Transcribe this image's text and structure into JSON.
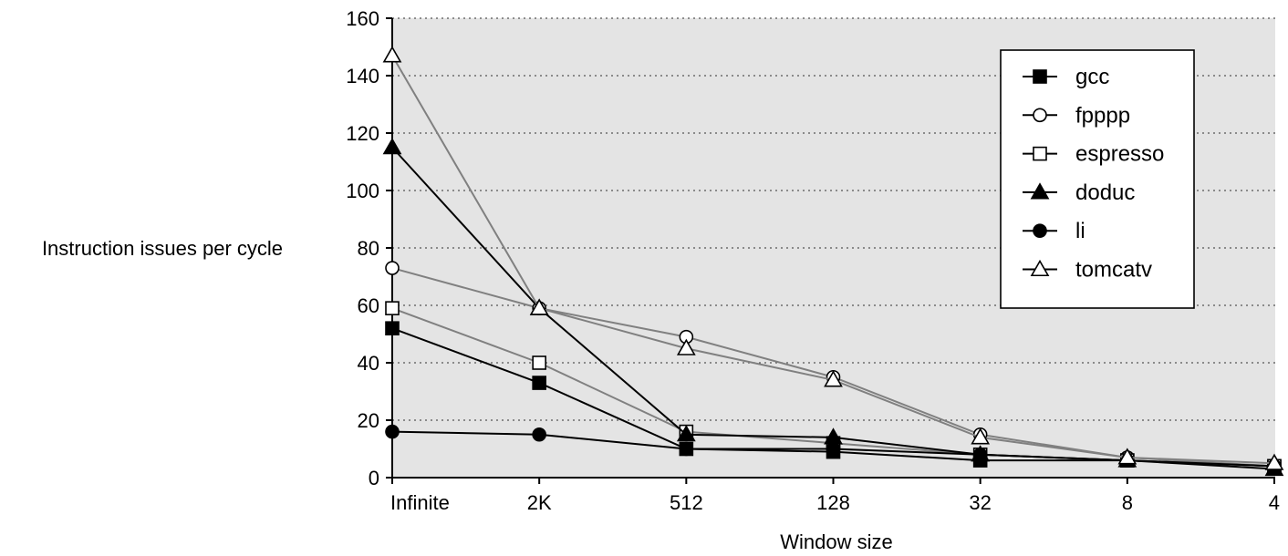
{
  "chart_data": {
    "type": "line",
    "title": "",
    "xlabel": "Window size",
    "ylabel": "Instruction issues per cycle",
    "categories": [
      "Infinite",
      "2K",
      "512",
      "128",
      "32",
      "8",
      "4"
    ],
    "ylim": [
      0,
      160
    ],
    "yticks": [
      0,
      20,
      40,
      60,
      80,
      100,
      120,
      140,
      160
    ],
    "grid": "horizontal dotted",
    "legend_position": "top-right",
    "series": [
      {
        "name": "gcc",
        "marker": "filled-square",
        "line_color": "#000000",
        "values": [
          52,
          33,
          10,
          9,
          6,
          6,
          4
        ]
      },
      {
        "name": "fpppp",
        "marker": "open-circle",
        "line_color": "#808080",
        "values": [
          73,
          59,
          49,
          35,
          15,
          7,
          4
        ]
      },
      {
        "name": "espresso",
        "marker": "open-square",
        "line_color": "#808080",
        "values": [
          59,
          40,
          16,
          12,
          8,
          6,
          4
        ]
      },
      {
        "name": "doduc",
        "marker": "filled-triangle",
        "line_color": "#000000",
        "values": [
          115,
          59,
          15,
          14,
          8,
          6,
          3
        ]
      },
      {
        "name": "li",
        "marker": "filled-circle",
        "line_color": "#000000",
        "values": [
          16,
          15,
          10,
          10,
          8,
          6,
          4
        ]
      },
      {
        "name": "tomcatv",
        "marker": "open-triangle",
        "line_color": "#808080",
        "values": [
          147,
          59,
          45,
          34,
          14,
          7,
          5
        ]
      }
    ],
    "colors": {
      "plot_background": "#e4e4e4",
      "grid": "#555555"
    }
  }
}
